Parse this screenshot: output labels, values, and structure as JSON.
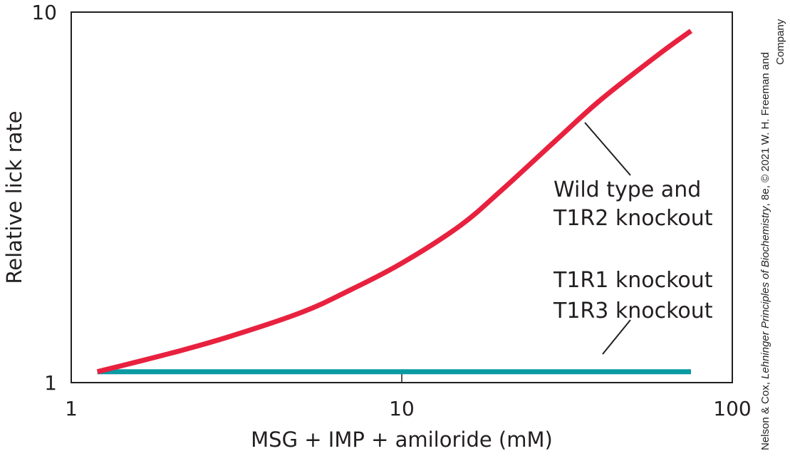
{
  "chart_data": {
    "type": "line",
    "xlabel": "MSG + IMP + amiloride (mM)",
    "ylabel": "Relative lick rate",
    "xscale": "log",
    "yscale": "log",
    "xlim": [
      1,
      100
    ],
    "ylim": [
      1,
      10
    ],
    "xticks": [
      {
        "value": 1,
        "label": "1"
      },
      {
        "value": 10,
        "label": "10"
      },
      {
        "value": 100,
        "label": "100"
      }
    ],
    "yticks": [
      {
        "value": 1,
        "label": "1"
      },
      {
        "value": 10,
        "label": "10"
      }
    ],
    "grid": false,
    "series": [
      {
        "name": "Wild type and T1R2 knockout",
        "color": "#e8213f",
        "points": [
          {
            "x": 1.2,
            "y": 1.07
          },
          {
            "x": 2,
            "y": 1.2
          },
          {
            "x": 3,
            "y": 1.33
          },
          {
            "x": 5,
            "y": 1.55
          },
          {
            "x": 7,
            "y": 1.78
          },
          {
            "x": 10,
            "y": 2.1
          },
          {
            "x": 15,
            "y": 2.65
          },
          {
            "x": 20,
            "y": 3.3
          },
          {
            "x": 30,
            "y": 4.6
          },
          {
            "x": 40,
            "y": 5.8
          },
          {
            "x": 60,
            "y": 7.7
          },
          {
            "x": 75,
            "y": 8.9
          }
        ]
      },
      {
        "name": "T1R1 knockout T1R3 knockout",
        "color": "#0a9aa4",
        "points": [
          {
            "x": 1.2,
            "y": 1.07
          },
          {
            "x": 75,
            "y": 1.07
          }
        ]
      }
    ],
    "annotations": [
      {
        "lines": [
          "Wild type and",
          "T1R2 knockout"
        ]
      },
      {
        "lines": [
          "T1R1 knockout",
          "T1R3 knockout"
        ]
      }
    ]
  },
  "credit": {
    "line1_prefix": "Nelson & Cox, ",
    "line1_title": "Lehninger Principles of Biochemistry",
    "line1_suffix": ", 8e, © 2021 W. H. Freeman and",
    "line2": "Company"
  }
}
